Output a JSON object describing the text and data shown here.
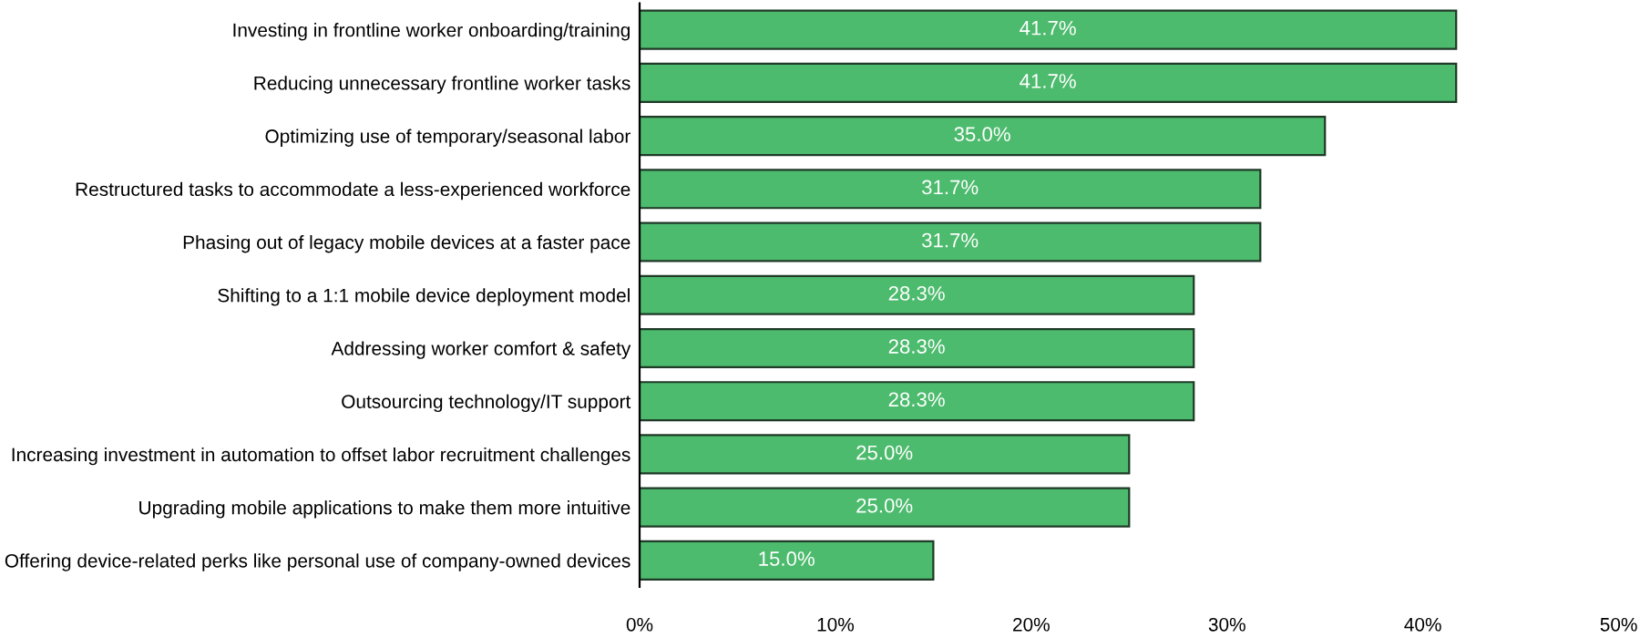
{
  "chart_data": {
    "type": "bar",
    "orientation": "horizontal",
    "categories": [
      "Investing in frontline worker onboarding/training",
      "Reducing unnecessary frontline worker tasks",
      "Optimizing use of temporary/seasonal labor",
      "Restructured tasks to accommodate a less-experienced workforce",
      "Phasing out of legacy mobile devices at a faster pace",
      "Shifting to a 1:1 mobile device deployment model",
      "Addressing worker comfort & safety",
      "Outsourcing technology/IT support",
      "Increasing investment in automation to offset labor recruitment challenges",
      "Upgrading mobile applications to make them more intuitive",
      "Offering device-related perks like personal use of company-owned devices"
    ],
    "values": [
      41.7,
      41.7,
      35.0,
      31.7,
      31.7,
      28.3,
      28.3,
      28.3,
      25.0,
      25.0,
      15.0
    ],
    "value_labels": [
      "41.7%",
      "41.7%",
      "35.0%",
      "31.7%",
      "31.7%",
      "28.3%",
      "28.3%",
      "28.3%",
      "25.0%",
      "25.0%",
      "15.0%"
    ],
    "color": "#4dbb6e",
    "xlim": [
      0,
      50
    ],
    "xticks": [
      {
        "value": 0,
        "label": "0%"
      },
      {
        "value": 10,
        "label": "10%"
      },
      {
        "value": 20,
        "label": "20%"
      },
      {
        "value": 30,
        "label": "30%"
      },
      {
        "value": 40,
        "label": "40%"
      },
      {
        "value": 50,
        "label": "50%"
      }
    ],
    "grid": false,
    "legend": false
  }
}
